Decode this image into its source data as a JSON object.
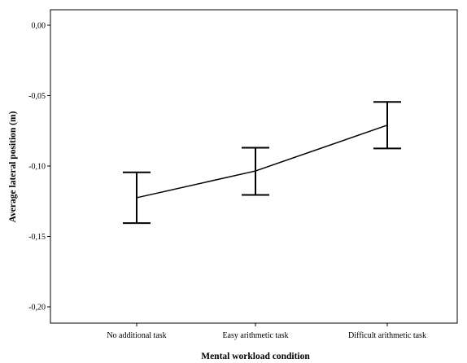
{
  "chart_data": {
    "type": "line",
    "title": "",
    "xlabel": "Mental workload condition",
    "ylabel": "Average lateral position (m)",
    "categories": [
      "No additional task",
      "Easy arithmetic task",
      "Difficult arithmetic task"
    ],
    "series": [
      {
        "values": [
          -0.1225,
          -0.1035,
          -0.071
        ],
        "error_low": [
          -0.1405,
          -0.1205,
          -0.0875
        ],
        "error_high": [
          -0.1045,
          -0.087,
          -0.0545
        ]
      }
    ],
    "ylim": [
      -0.21,
      0.0
    ],
    "yticks": [
      "0,00",
      "-0,05",
      "-0,10",
      "-0,15",
      "-0,20"
    ],
    "ytick_values": [
      0.0,
      -0.05,
      -0.1,
      -0.15,
      -0.2
    ],
    "grid": false,
    "legend": "none",
    "line_color": "#000000"
  }
}
